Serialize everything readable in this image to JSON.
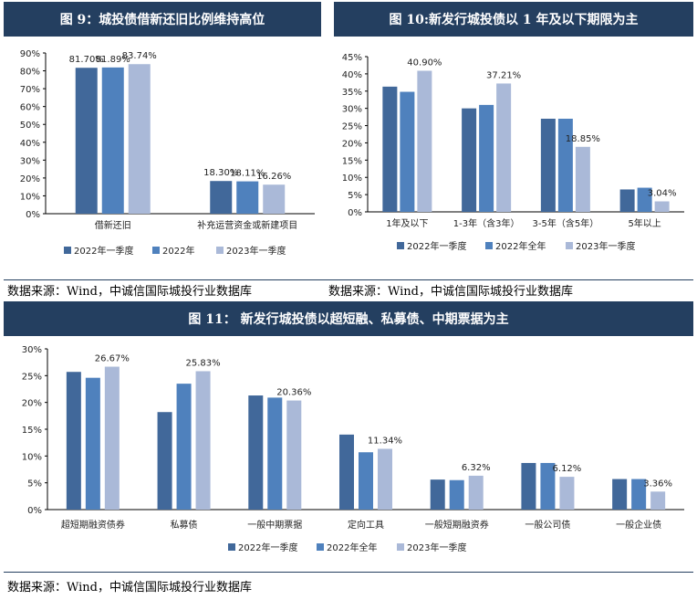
{
  "colors": {
    "header": "#243f60",
    "series": [
      "#41689a",
      "#4f81bd",
      "#aab9d8"
    ]
  },
  "headers": {
    "fig9": "图 9：城投债借新还旧比例维持高位",
    "fig10": "图 10:新发行城投债以 1 年及以下期限为主",
    "fig11": "图 11：  新发行城投债以超短融、私募债、中期票据为主"
  },
  "sources": {
    "fig9": "数据来源：Wind，中诚信国际城投行业数据库",
    "fig10": "数据来源：Wind，中诚信国际城投行业数据库",
    "fig11": "数据来源：Wind，中诚信国际城投行业数据库"
  },
  "chart_data": [
    {
      "type": "bar",
      "title": "图 9：城投债借新还旧比例维持高位",
      "categories": [
        "借新还旧",
        "补充运营资金或新建项目"
      ],
      "series": [
        {
          "name": "2022年一季度",
          "values": [
            81.7,
            18.3
          ]
        },
        {
          "name": "2022年",
          "values": [
            81.89,
            18.11
          ]
        },
        {
          "name": "2023年一季度",
          "values": [
            83.74,
            16.26
          ]
        }
      ],
      "data_labels": [
        [
          "81.70%",
          "18.30%"
        ],
        [
          "81.89%",
          "18.11%"
        ],
        [
          "83.74%",
          "16.26%"
        ]
      ],
      "yticks": [
        "0%",
        "10%",
        "20%",
        "30%",
        "40%",
        "50%",
        "60%",
        "70%",
        "80%",
        "90%"
      ],
      "ylim": [
        0,
        90
      ],
      "legend": "bottom",
      "grid": false
    },
    {
      "type": "bar",
      "title": "图 10:新发行城投债以 1 年及以下期限为主",
      "categories": [
        "1年及以下",
        "1-3年（含3年）",
        "3-5年（含5年）",
        "5年以上"
      ],
      "series": [
        {
          "name": "2022年一季度",
          "values": [
            36.3,
            30.0,
            27.0,
            6.5
          ]
        },
        {
          "name": "2022年全年",
          "values": [
            34.8,
            31.0,
            27.0,
            7.0
          ]
        },
        {
          "name": "2023年一季度",
          "values": [
            40.9,
            37.21,
            18.85,
            3.04
          ]
        }
      ],
      "data_labels": [
        [
          null,
          null,
          null,
          null
        ],
        [
          null,
          null,
          null,
          null
        ],
        [
          "40.90%",
          "37.21%",
          "18.85%",
          "3.04%"
        ]
      ],
      "yticks": [
        "0%",
        "5%",
        "10%",
        "15%",
        "20%",
        "25%",
        "30%",
        "35%",
        "40%",
        "45%"
      ],
      "ylim": [
        0,
        45
      ],
      "legend": "bottom",
      "grid": false
    },
    {
      "type": "bar",
      "title": "图 11：  新发行城投债以超短融、私募债、中期票据为主",
      "categories": [
        "超短期融资债券",
        "私募债",
        "一般中期票据",
        "定向工具",
        "一般短期融资券",
        "一般公司债",
        "一般企业债"
      ],
      "series": [
        {
          "name": "2022年一季度",
          "values": [
            25.7,
            18.2,
            21.3,
            14.0,
            5.6,
            8.7,
            5.7
          ]
        },
        {
          "name": "2022年全年",
          "values": [
            24.6,
            23.5,
            20.9,
            10.7,
            5.5,
            8.7,
            5.7
          ]
        },
        {
          "name": "2023年一季度",
          "values": [
            26.67,
            25.83,
            20.36,
            11.34,
            6.32,
            6.12,
            3.36
          ]
        }
      ],
      "data_labels": [
        [
          null,
          null,
          null,
          null,
          null,
          null,
          null
        ],
        [
          null,
          null,
          null,
          null,
          null,
          null,
          null
        ],
        [
          "26.67%",
          "25.83%",
          "20.36%",
          "11.34%",
          "6.32%",
          "6.12%",
          "3.36%"
        ]
      ],
      "yticks": [
        "0%",
        "5%",
        "10%",
        "15%",
        "20%",
        "25%",
        "30%"
      ],
      "ylim": [
        0,
        30
      ],
      "legend": "bottom",
      "grid": false
    }
  ]
}
